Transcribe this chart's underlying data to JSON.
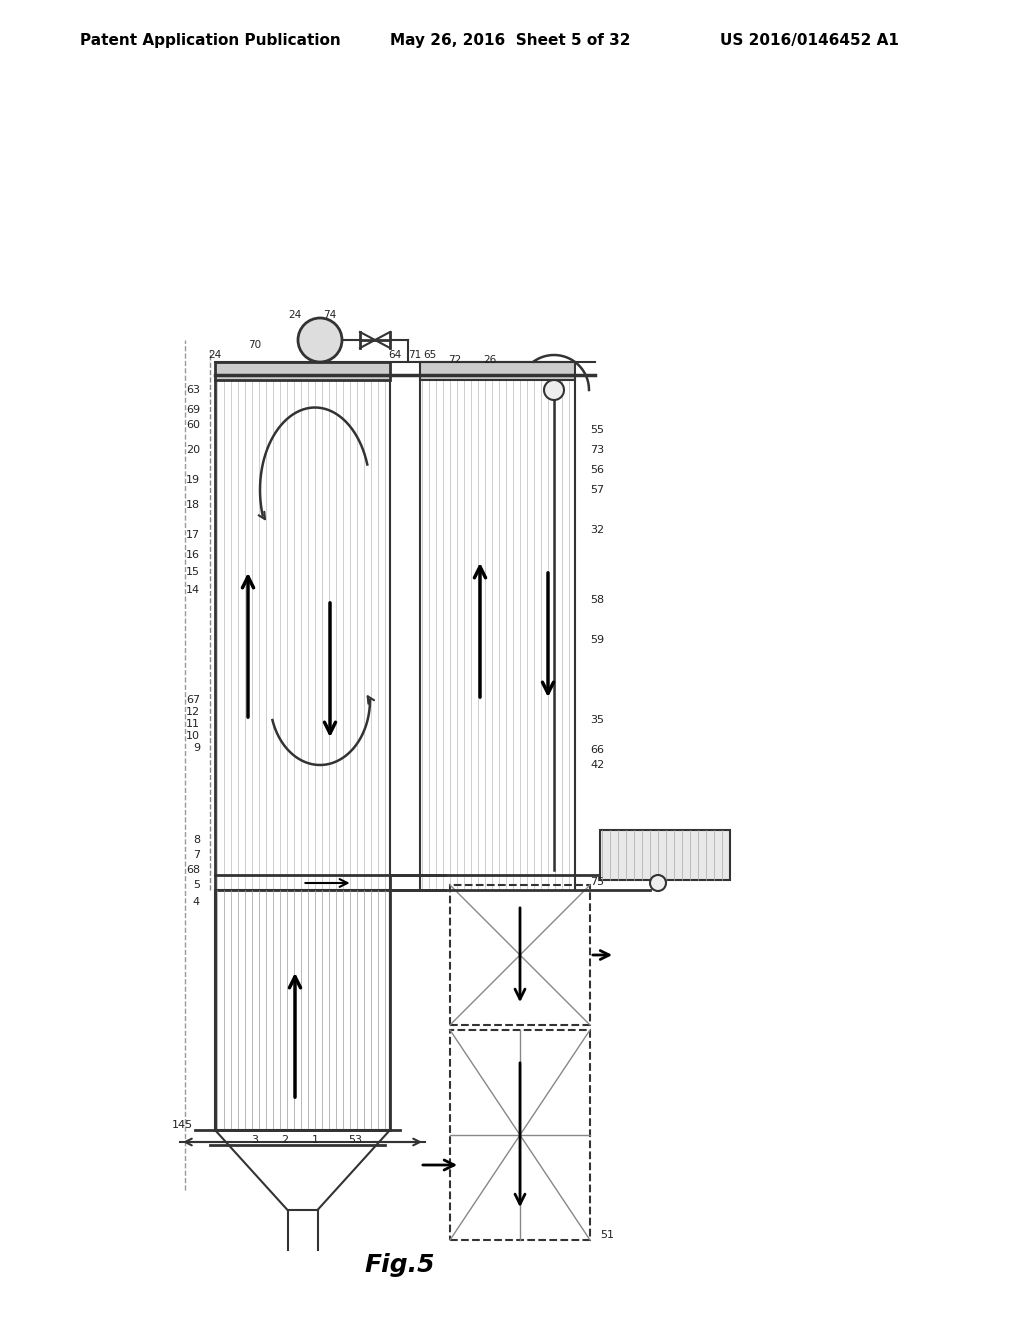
{
  "bg_color": "#ffffff",
  "line_color": "#333333",
  "dashed_color": "#666666",
  "header_text": "Patent Application Publication",
  "header_date": "May 26, 2016  Sheet 5 of 32",
  "header_patent": "US 2016/0146452 A1",
  "fig_label": "Fig.5",
  "title_fontsize": 11,
  "fig_fontsize": 18
}
